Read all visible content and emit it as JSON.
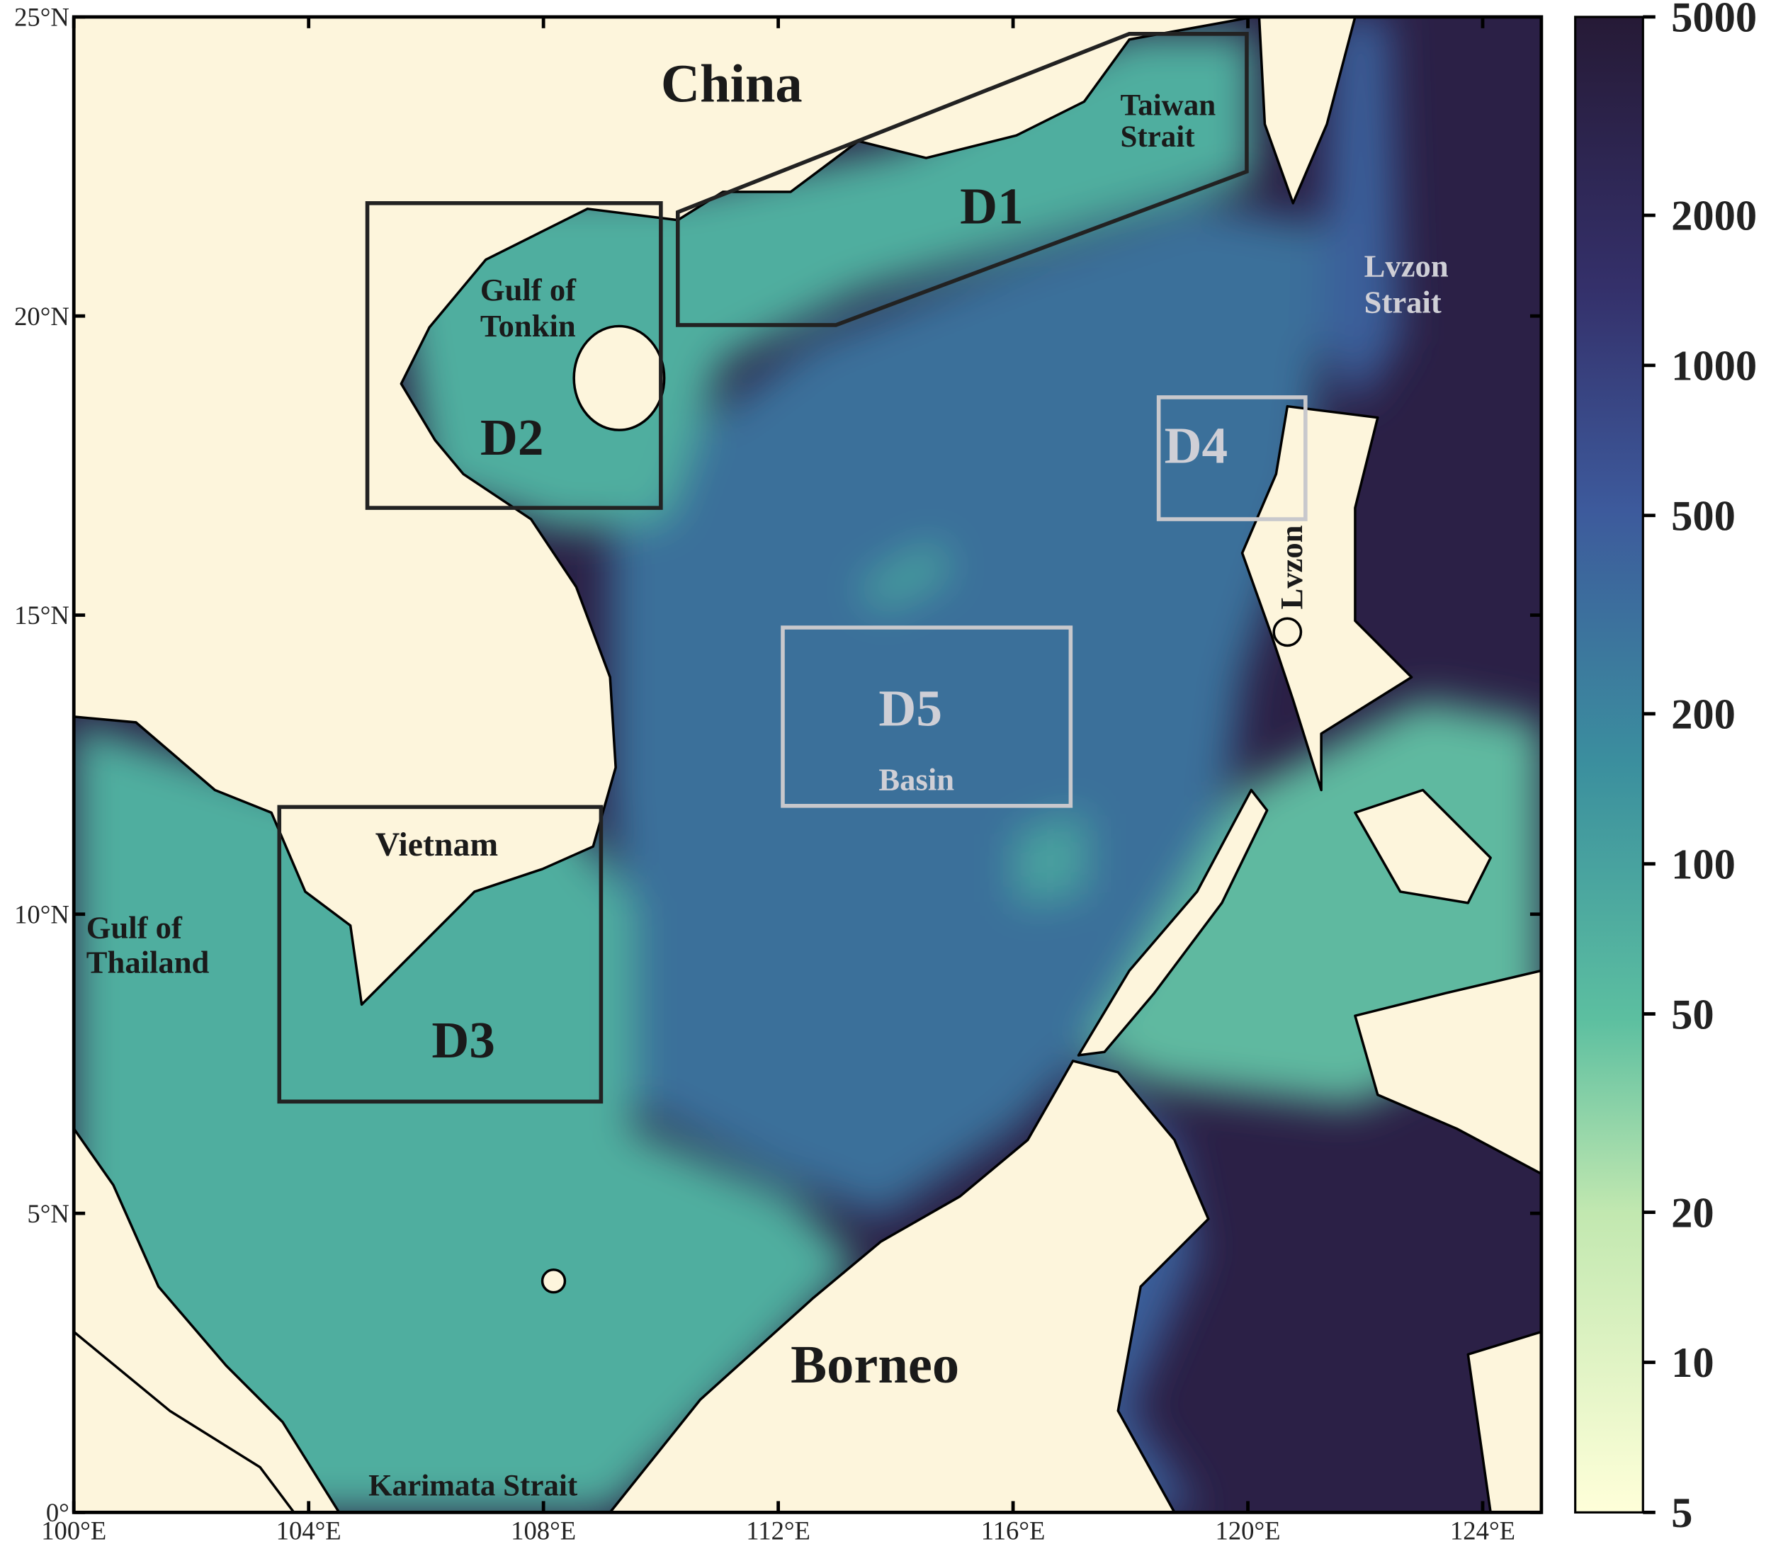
{
  "map": {
    "xlim": [
      100,
      125
    ],
    "ylim": [
      0,
      25
    ],
    "xticks": [
      {
        "value": 100,
        "label": "100°E"
      },
      {
        "value": 104,
        "label": "104°E"
      },
      {
        "value": 108,
        "label": "108°E"
      },
      {
        "value": 112,
        "label": "112°E"
      },
      {
        "value": 116,
        "label": "116°E"
      },
      {
        "value": 120,
        "label": "120°E"
      },
      {
        "value": 124,
        "label": "124°E"
      }
    ],
    "yticks": [
      {
        "value": 0,
        "label": "0°"
      },
      {
        "value": 5,
        "label": "5°N"
      },
      {
        "value": 10,
        "label": "10°N"
      },
      {
        "value": 15,
        "label": "15°N"
      },
      {
        "value": 20,
        "label": "20°N"
      },
      {
        "value": 25,
        "label": "25°N"
      }
    ],
    "labels": {
      "china": "China",
      "taiwan_strait": [
        "Taiwan",
        "Strait"
      ],
      "gulf_of_tonkin": [
        "Gulf of",
        "Tonkin"
      ],
      "lvzon_strait": [
        "Lvzon",
        "Strait"
      ],
      "lvzon": "Lvzon",
      "basin": "Basin",
      "vietnam": "Vietnam",
      "gulf_of_thailand": [
        "Gulf of",
        "Thailand"
      ],
      "borneo": "Borneo",
      "karimata_strait": "Karimata Strait"
    },
    "regions": [
      "D1",
      "D2",
      "D3",
      "D4",
      "D5"
    ]
  },
  "colorbar": {
    "scale": "log",
    "lim": [
      5,
      5000
    ],
    "ticks": [
      5,
      10,
      20,
      50,
      100,
      200,
      500,
      1000,
      2000,
      5000
    ]
  }
}
